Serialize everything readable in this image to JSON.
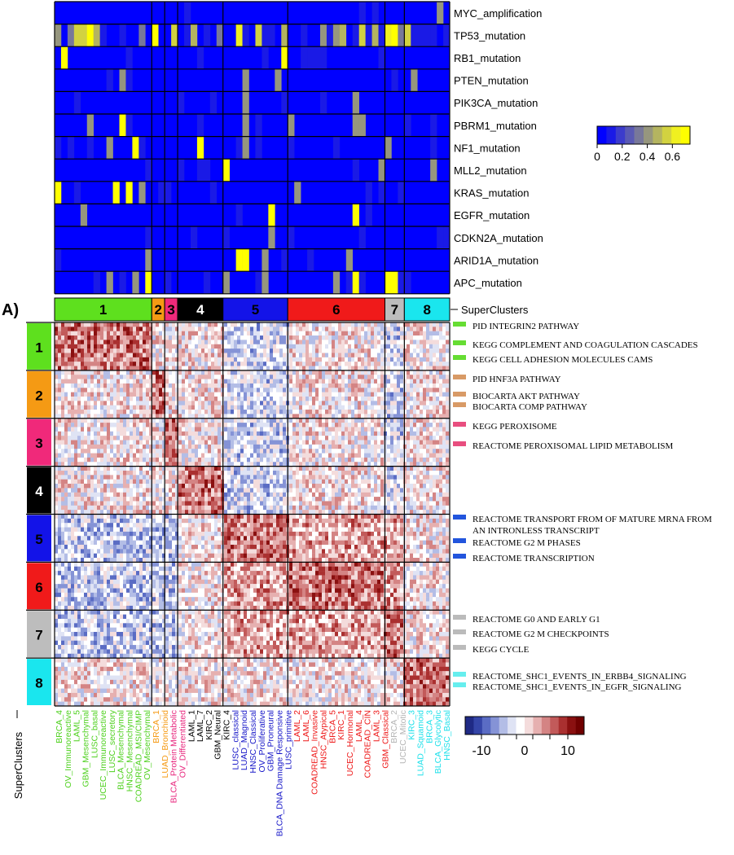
{
  "panel_label": "A)",
  "superclusters_label": "SuperClusters",
  "superclusters_label_vertical": "SuperClusters",
  "mutation_rows": [
    "MYC_amplification",
    "TP53_mutation",
    "RB1_mutation",
    "PTEN_mutation",
    "PIK3CA_mutation",
    "PBRM1_mutation",
    "NF1_mutation",
    "MLL2_mutation",
    "KRAS_mutation",
    "EGFR_mutation",
    "CDKN2A_mutation",
    "ARID1A_mutation",
    "APC_mutation"
  ],
  "superclusters": [
    {
      "id": "1",
      "color": "#5ee01e",
      "text_color": "#000000",
      "cols": 15
    },
    {
      "id": "2",
      "color": "#f59a14",
      "text_color": "#000000",
      "cols": 2
    },
    {
      "id": "3",
      "color": "#f0297a",
      "text_color": "#000000",
      "cols": 2
    },
    {
      "id": "4",
      "color": "#000000",
      "text_color": "#ffffff",
      "cols": 7
    },
    {
      "id": "5",
      "color": "#1313e8",
      "text_color": "#000000",
      "cols": 10
    },
    {
      "id": "6",
      "color": "#f01a1a",
      "text_color": "#000000",
      "cols": 15
    },
    {
      "id": "7",
      "color": "#bdbdbd",
      "text_color": "#000000",
      "cols": 3
    },
    {
      "id": "8",
      "color": "#1ae6ee",
      "text_color": "#000000",
      "cols": 7
    }
  ],
  "pathways": [
    {
      "label": "PID INTEGRIN2 PATHWAY",
      "color": "#66dd33"
    },
    {
      "label": "KEGG COMPLEMENT AND COAGULATION CASCADES",
      "color": "#66dd33"
    },
    {
      "label": "KEGG CELL ADHESION MOLECULES CAMS",
      "color": "#66dd33"
    },
    {
      "label": "PID HNF3A PATHWAY",
      "color": "#d89a66"
    },
    {
      "label": "BIOCARTA AKT PATHWAY",
      "color": "#d89a66"
    },
    {
      "label": "BIOCARTA COMP PATHWAY",
      "color": "#d89a66"
    },
    {
      "label": "KEGG PEROXISOME",
      "color": "#e84e7f"
    },
    {
      "label": "REACTOME PEROXISOMAL LIPID METABOLISM",
      "color": "#e84e7f"
    },
    {
      "label": "REACTOME TRANSPORT FROM OF MATURE MRNA FROM",
      "color": "#2255dd"
    },
    {
      "label": "AN INTRONLESS TRANSCRIPT",
      "color": ""
    },
    {
      "label": "REACTOME G2 M PHASES",
      "color": "#2255dd"
    },
    {
      "label": "REACTOME TRANSCRIPTION",
      "color": "#2255dd"
    },
    {
      "label": "REACTOME G0 AND EARLY G1",
      "color": "#bbbbbb"
    },
    {
      "label": "REACTOME G2 M CHECKPOINTS",
      "color": "#bbbbbb"
    },
    {
      "label": "KEGG CYCLE",
      "color": "#bbbbbb"
    },
    {
      "label": "REACTOME_SHC1_EVENTS_IN_ERBB4_SIGNALING",
      "color": "#66eeee"
    },
    {
      "label": "REACTOME_SHC1_EVENTS_IN_EGFR_SIGNALING",
      "color": "#66eeee"
    }
  ],
  "column_labels": [
    {
      "text": "BRCA_4",
      "color": "#4fd11f"
    },
    {
      "text": "OV_Immunoreactive",
      "color": "#4fd11f"
    },
    {
      "text": "LAML_5",
      "color": "#4fd11f"
    },
    {
      "text": "GBM_Mesenchymal",
      "color": "#4fd11f"
    },
    {
      "text": "LUSC_basal",
      "color": "#4fd11f"
    },
    {
      "text": "UCEC_Immunoreactive",
      "color": "#4fd11f"
    },
    {
      "text": "LUSC_secretory",
      "color": "#4fd11f"
    },
    {
      "text": "BLCA_Mesenchymal",
      "color": "#4fd11f"
    },
    {
      "text": "HNSC_Mesenchymal",
      "color": "#4fd11f"
    },
    {
      "text": "COADREAD_MSI/CIMP",
      "color": "#4fd11f"
    },
    {
      "text": "OV_Mesenchymal",
      "color": "#4fd11f"
    },
    {
      "text": "BRCA_1",
      "color": "#f59a14"
    },
    {
      "text": "LUAD_Bronchioid",
      "color": "#f59a14"
    },
    {
      "text": "BLCA_Protein Metabolic",
      "color": "#e8267d"
    },
    {
      "text": "OV_Differentiated",
      "color": "#e8267d"
    },
    {
      "text": "LAML_1",
      "color": "#000000"
    },
    {
      "text": "LAML_7",
      "color": "#000000"
    },
    {
      "text": "KIRC_2",
      "color": "#000000"
    },
    {
      "text": "GBM_Neural",
      "color": "#000000"
    },
    {
      "text": "KIRC_4",
      "color": "#000000"
    },
    {
      "text": "LUSC_classical",
      "color": "#1616c8"
    },
    {
      "text": "LUAD_Magnoid",
      "color": "#1616c8"
    },
    {
      "text": "HNSC_Classical",
      "color": "#1616c8"
    },
    {
      "text": "OV_Proliferative",
      "color": "#1616c8"
    },
    {
      "text": "GBM_Proneural",
      "color": "#1616c8"
    },
    {
      "text": "BLCA_DNA Damage Responsive",
      "color": "#1616c8"
    },
    {
      "text": "LUSC_primitive",
      "color": "#1616c8"
    },
    {
      "text": "LAML_2",
      "color": "#ee1a1a"
    },
    {
      "text": "LAML_6",
      "color": "#ee1a1a"
    },
    {
      "text": "COADREAD_Invasive",
      "color": "#ee1a1a"
    },
    {
      "text": "HNSC_Atypical",
      "color": "#ee1a1a"
    },
    {
      "text": "BRCA_5",
      "color": "#ee1a1a"
    },
    {
      "text": "KIRC_1",
      "color": "#ee1a1a"
    },
    {
      "text": "UCEC_Hormonal",
      "color": "#ee1a1a"
    },
    {
      "text": "LAML_4",
      "color": "#ee1a1a"
    },
    {
      "text": "COADREAD_CIN",
      "color": "#ee1a1a"
    },
    {
      "text": "LAML_3",
      "color": "#ee1a1a"
    },
    {
      "text": "GBM_Classical",
      "color": "#ee1a1a"
    },
    {
      "text": "BRCA_2",
      "color": "#b5b5b5"
    },
    {
      "text": "UCEC_Mitotic",
      "color": "#b5b5b5"
    },
    {
      "text": "KIRC_3",
      "color": "#1ee0ea"
    },
    {
      "text": "LUAD_Squamoid",
      "color": "#1ee0ea"
    },
    {
      "text": "BRCA_3",
      "color": "#1ee0ea"
    },
    {
      "text": "BLCA_Glycolytic",
      "color": "#1ee0ea"
    },
    {
      "text": "HNSC_Basal",
      "color": "#1ee0ea"
    }
  ],
  "mutation_legend": {
    "ticks": [
      "0",
      "0.2",
      "0.4",
      "0.6"
    ],
    "colors": [
      "#0000ff",
      "#1a1ae6",
      "#3c3ccc",
      "#5a5ab4",
      "#78789a",
      "#96967e",
      "#b4b460",
      "#d2d240",
      "#f0f020",
      "#ffff00"
    ]
  },
  "expression_legend": {
    "ticks": [
      "-10",
      "0",
      "10"
    ],
    "colors": [
      "#1f2a85",
      "#3445a8",
      "#5a6cc4",
      "#8593d6",
      "#b3bde6",
      "#dfe3f4",
      "#ffffff",
      "#f4dcdc",
      "#e6b0b0",
      "#d48484",
      "#c25a5a",
      "#aa3030",
      "#8a1010",
      "#700000"
    ]
  }
}
